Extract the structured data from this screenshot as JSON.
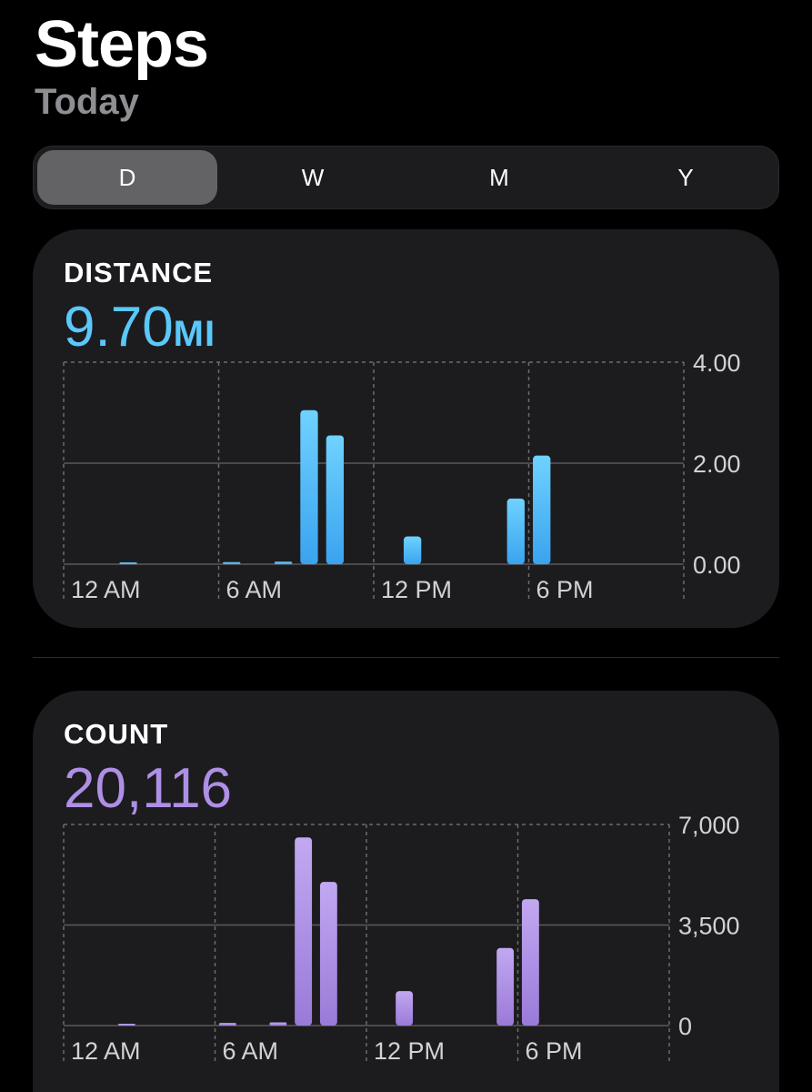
{
  "header": {
    "title": "Steps",
    "subtitle": "Today"
  },
  "segments": [
    {
      "label": "D",
      "selected": true
    },
    {
      "label": "W",
      "selected": false
    },
    {
      "label": "M",
      "selected": false
    },
    {
      "label": "Y",
      "selected": false
    }
  ],
  "distance": {
    "label": "DISTANCE",
    "value": "9.70",
    "unit": "MI",
    "color": "#5ac8fa"
  },
  "count": {
    "label": "COUNT",
    "value": "20,116",
    "color": "#af8fe6"
  },
  "chart_data": [
    {
      "type": "bar",
      "x_labels": [
        "12 AM",
        "6 AM",
        "12 PM",
        "6 PM"
      ],
      "y_ticks": [
        "4.00",
        "2.00",
        "0.00"
      ],
      "ylim": [
        0,
        4
      ],
      "hours": [
        0,
        1,
        2,
        3,
        4,
        5,
        6,
        7,
        8,
        9,
        10,
        11,
        12,
        13,
        14,
        15,
        16,
        17,
        18,
        19,
        20,
        21,
        22,
        23
      ],
      "values": [
        0,
        0,
        0.01,
        0,
        0,
        0,
        0.04,
        0,
        0.05,
        3.05,
        2.55,
        0,
        0,
        0.55,
        0,
        0,
        0,
        1.3,
        2.15,
        0,
        0,
        0,
        0,
        0
      ],
      "color_top": "#6fd2ff",
      "color_bottom": "#3aa3ef",
      "grid": true
    },
    {
      "type": "bar",
      "x_labels": [
        "12 AM",
        "6 AM",
        "12 PM",
        "6 PM"
      ],
      "y_ticks": [
        "7,000",
        "3,500",
        "0"
      ],
      "ylim": [
        0,
        7000
      ],
      "hours": [
        0,
        1,
        2,
        3,
        4,
        5,
        6,
        7,
        8,
        9,
        10,
        11,
        12,
        13,
        14,
        15,
        16,
        17,
        18,
        19,
        20,
        21,
        22,
        23
      ],
      "values": [
        0,
        0,
        20,
        0,
        0,
        0,
        90,
        0,
        110,
        6550,
        5000,
        0,
        0,
        1200,
        0,
        0,
        0,
        2700,
        4400,
        0,
        0,
        0,
        0,
        0
      ],
      "color_top": "#c2a8f2",
      "color_bottom": "#9a7ad8",
      "grid": true
    }
  ]
}
